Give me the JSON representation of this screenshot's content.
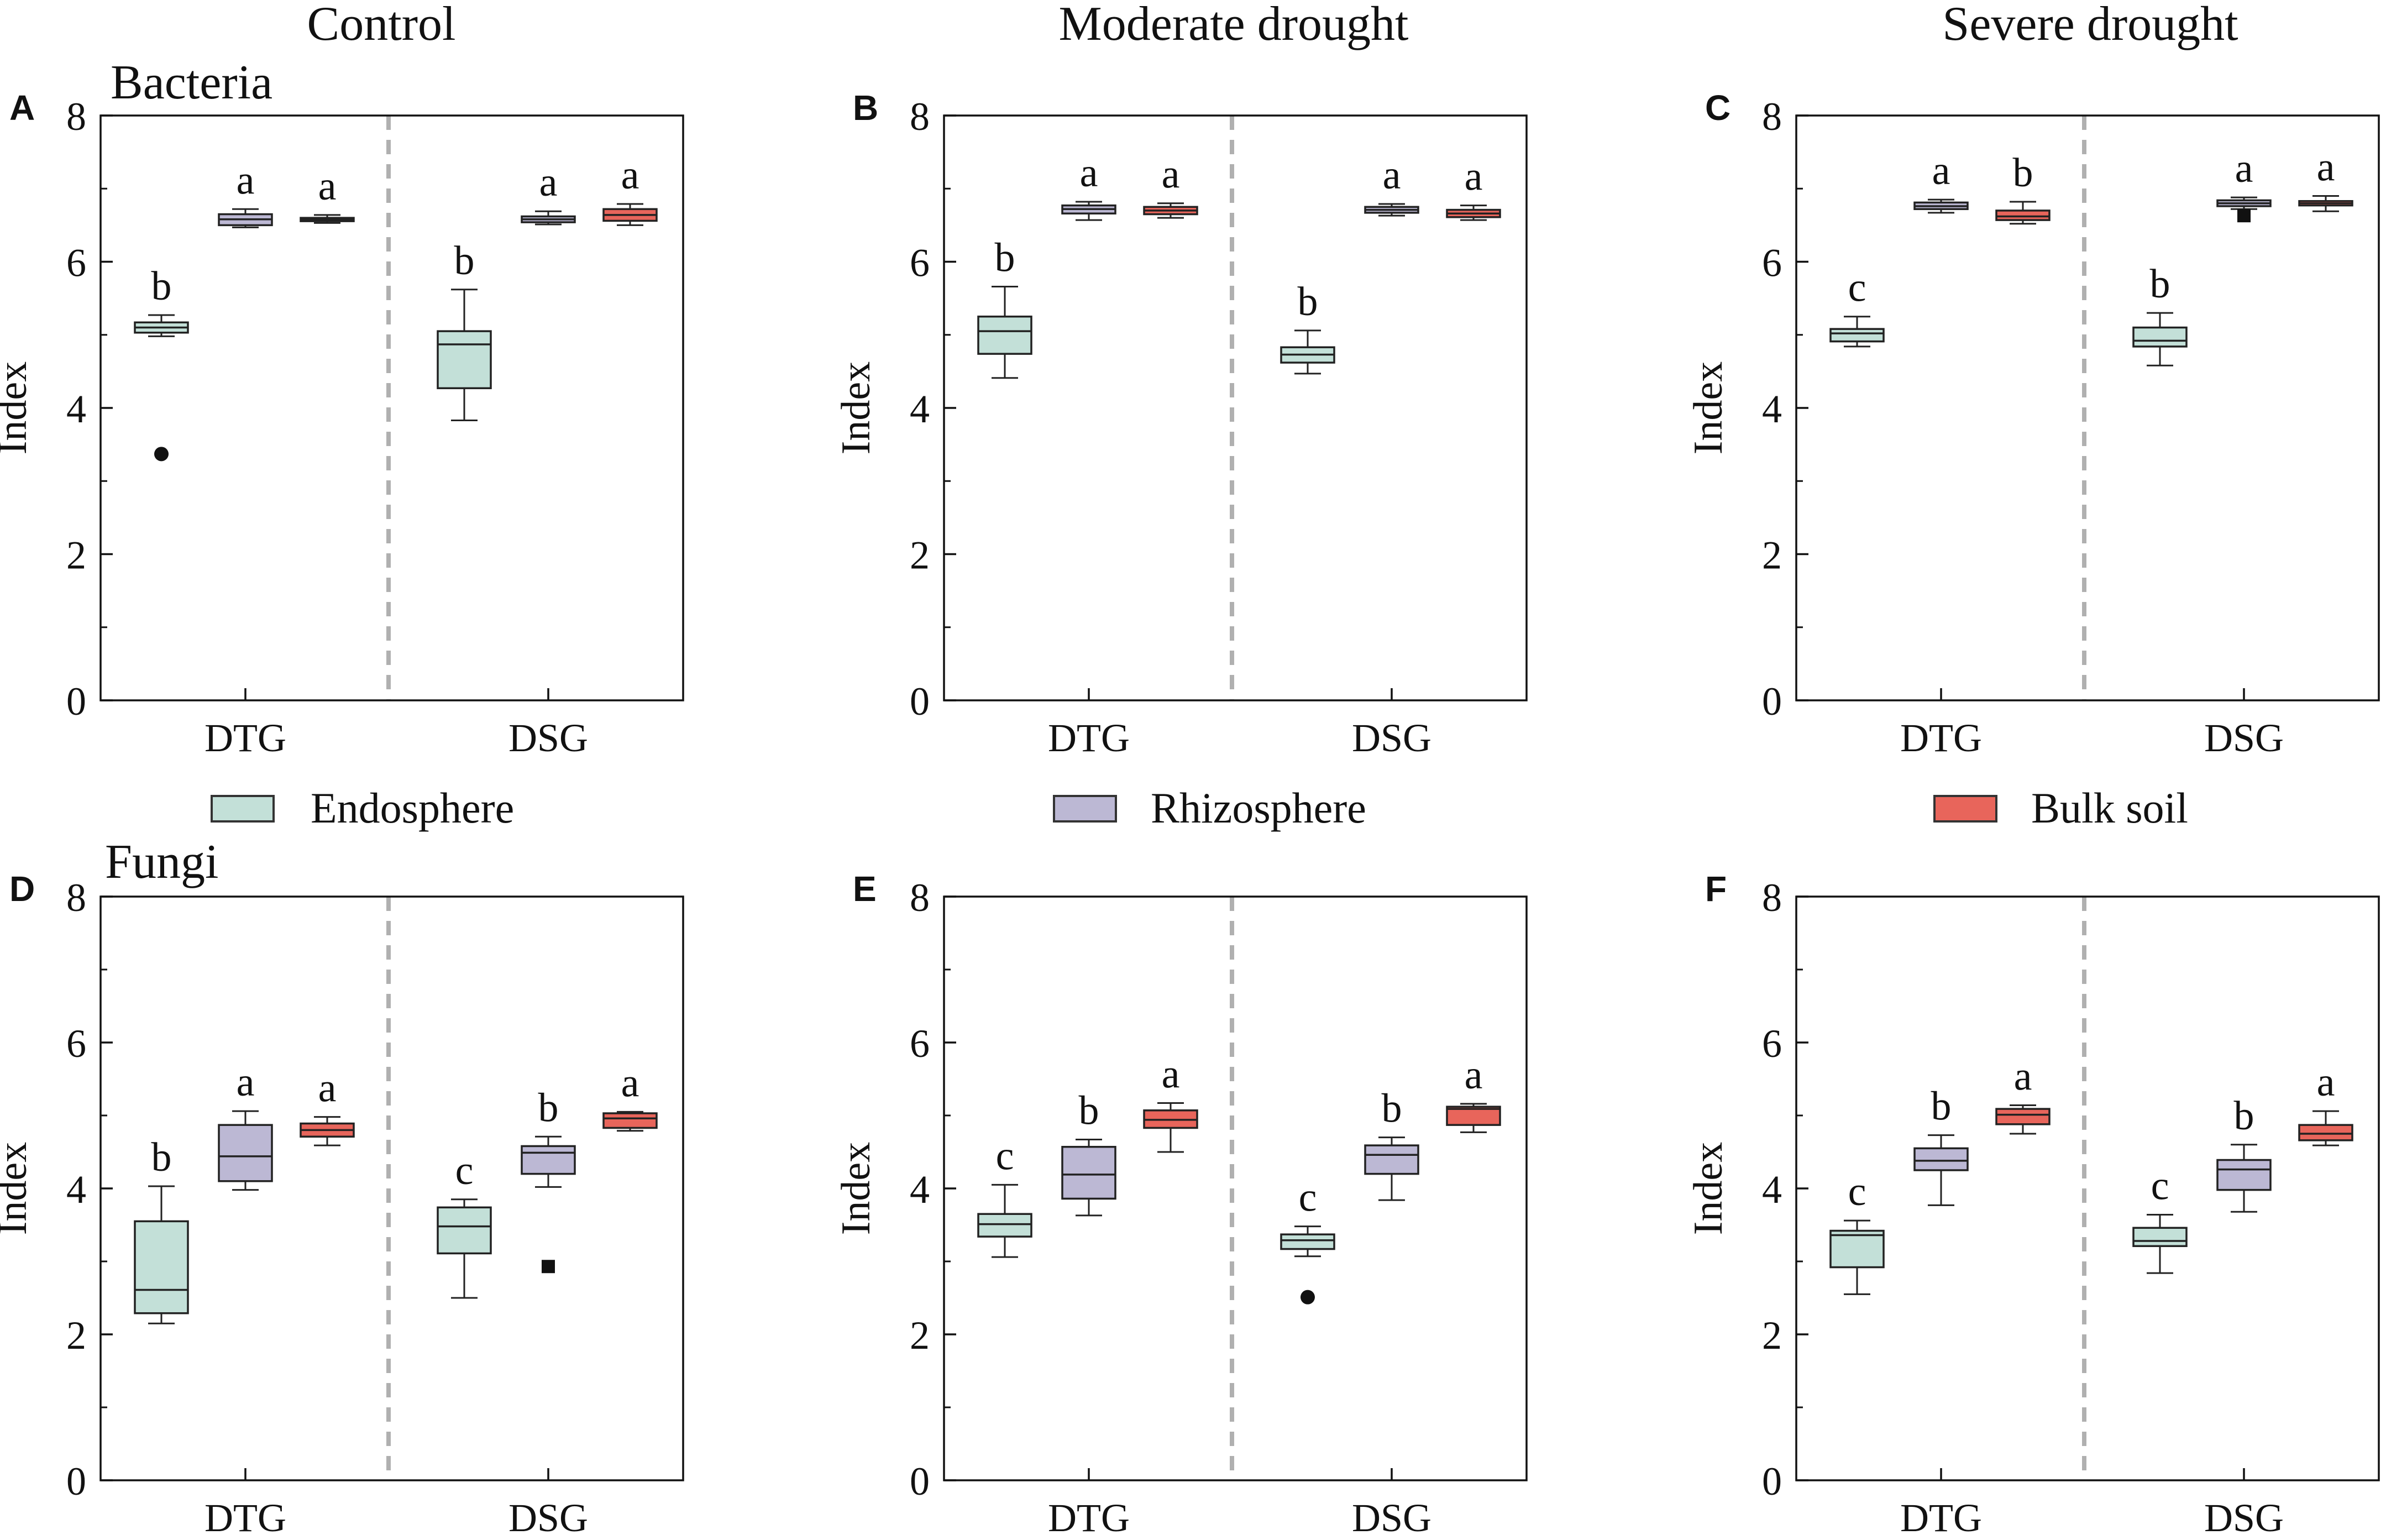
{
  "column_headers": [
    "Control",
    "Moderate drought",
    "Severe drought"
  ],
  "row_labels": [
    "Bacteria",
    "Fungi"
  ],
  "legend": [
    {
      "label": "Endosphere",
      "color": "#c3e0d8"
    },
    {
      "label": "Rhizosphere",
      "color": "#bcb8d4"
    },
    {
      "label": "Bulk soil",
      "color": "#e8655b"
    }
  ],
  "colors": {
    "endosphere": "#c3e0d8",
    "rhizosphere": "#bcb8d4",
    "bulk_soil": "#e8655b",
    "divider": "#b0b0b0",
    "axis": "#111111"
  },
  "chart_data": [
    {
      "panel": "A",
      "type": "box",
      "ylabel": "Index",
      "ylim": [
        0,
        8
      ],
      "yticks": [
        "0",
        "2",
        "4",
        "6",
        "8"
      ],
      "categories": [
        "DTG",
        "DSG"
      ],
      "series": [
        "Endosphere",
        "Rhizosphere",
        "Bulk soil"
      ],
      "groups": [
        [
          {
            "min": 4.98,
            "q1": 5.03,
            "median": 5.1,
            "q3": 5.17,
            "max": 5.27,
            "letter": "b",
            "outliers": [
              3.37
            ],
            "outlier_shape": "circle"
          },
          {
            "min": 6.47,
            "q1": 6.5,
            "median": 6.58,
            "q3": 6.65,
            "max": 6.72,
            "letter": "a",
            "outliers": []
          },
          {
            "min": 6.53,
            "q1": 6.56,
            "median": 6.58,
            "q3": 6.6,
            "max": 6.64,
            "letter": "a",
            "outliers": []
          }
        ],
        [
          {
            "min": 3.83,
            "q1": 4.27,
            "median": 4.87,
            "q3": 5.05,
            "max": 5.62,
            "letter": "b",
            "outliers": []
          },
          {
            "min": 6.51,
            "q1": 6.54,
            "median": 6.58,
            "q3": 6.62,
            "max": 6.69,
            "letter": "a",
            "outliers": []
          },
          {
            "min": 6.5,
            "q1": 6.56,
            "median": 6.64,
            "q3": 6.72,
            "max": 6.79,
            "letter": "a",
            "outliers": []
          }
        ]
      ]
    },
    {
      "panel": "B",
      "type": "box",
      "ylabel": "Index",
      "ylim": [
        0,
        8
      ],
      "yticks": [
        "0",
        "2",
        "4",
        "6",
        "8"
      ],
      "categories": [
        "DTG",
        "DSG"
      ],
      "series": [
        "Endosphere",
        "Rhizosphere",
        "Bulk soil"
      ],
      "groups": [
        [
          {
            "min": 4.41,
            "q1": 4.74,
            "median": 5.05,
            "q3": 5.25,
            "max": 5.66,
            "letter": "b",
            "outliers": []
          },
          {
            "min": 6.57,
            "q1": 6.66,
            "median": 6.72,
            "q3": 6.77,
            "max": 6.82,
            "letter": "a",
            "outliers": []
          },
          {
            "min": 6.6,
            "q1": 6.65,
            "median": 6.7,
            "q3": 6.75,
            "max": 6.8,
            "letter": "a",
            "outliers": []
          }
        ],
        [
          {
            "min": 4.47,
            "q1": 4.62,
            "median": 4.73,
            "q3": 4.83,
            "max": 5.06,
            "letter": "b",
            "outliers": []
          },
          {
            "min": 6.63,
            "q1": 6.67,
            "median": 6.71,
            "q3": 6.75,
            "max": 6.79,
            "letter": "a",
            "outliers": []
          },
          {
            "min": 6.57,
            "q1": 6.61,
            "median": 6.66,
            "q3": 6.71,
            "max": 6.77,
            "letter": "a",
            "outliers": []
          }
        ]
      ]
    },
    {
      "panel": "C",
      "type": "box",
      "ylabel": "Index",
      "ylim": [
        0,
        8
      ],
      "yticks": [
        "0",
        "2",
        "4",
        "6",
        "8"
      ],
      "categories": [
        "DTG",
        "DSG"
      ],
      "series": [
        "Endosphere",
        "Rhizosphere",
        "Bulk soil"
      ],
      "groups": [
        [
          {
            "min": 4.84,
            "q1": 4.91,
            "median": 5.02,
            "q3": 5.08,
            "max": 5.25,
            "letter": "c",
            "outliers": []
          },
          {
            "min": 6.67,
            "q1": 6.72,
            "median": 6.76,
            "q3": 6.81,
            "max": 6.85,
            "letter": "a",
            "outliers": []
          },
          {
            "min": 6.52,
            "q1": 6.57,
            "median": 6.62,
            "q3": 6.7,
            "max": 6.82,
            "letter": "b",
            "outliers": []
          }
        ],
        [
          {
            "min": 4.58,
            "q1": 4.84,
            "median": 4.92,
            "q3": 5.1,
            "max": 5.3,
            "letter": "b",
            "outliers": []
          },
          {
            "min": 6.72,
            "q1": 6.76,
            "median": 6.8,
            "q3": 6.84,
            "max": 6.88,
            "letter": "a",
            "outliers": [
              6.63
            ],
            "outlier_shape": "square"
          },
          {
            "min": 6.69,
            "q1": 6.77,
            "median": 6.8,
            "q3": 6.83,
            "max": 6.9,
            "letter": "a",
            "outliers": []
          }
        ]
      ]
    },
    {
      "panel": "D",
      "type": "box",
      "ylabel": "Index",
      "ylim": [
        0,
        8
      ],
      "yticks": [
        "0",
        "2",
        "4",
        "6",
        "8"
      ],
      "categories": [
        "DTG",
        "DSG"
      ],
      "series": [
        "Endosphere",
        "Rhizosphere",
        "Bulk soil"
      ],
      "groups": [
        [
          {
            "min": 2.15,
            "q1": 2.29,
            "median": 2.61,
            "q3": 3.55,
            "max": 4.03,
            "letter": "b",
            "outliers": []
          },
          {
            "min": 3.98,
            "q1": 4.1,
            "median": 4.44,
            "q3": 4.87,
            "max": 5.06,
            "letter": "a",
            "outliers": []
          },
          {
            "min": 4.59,
            "q1": 4.71,
            "median": 4.8,
            "q3": 4.89,
            "max": 4.98,
            "letter": "a",
            "outliers": []
          }
        ],
        [
          {
            "min": 2.5,
            "q1": 3.11,
            "median": 3.48,
            "q3": 3.74,
            "max": 3.85,
            "letter": "c",
            "outliers": []
          },
          {
            "min": 4.02,
            "q1": 4.2,
            "median": 4.49,
            "q3": 4.58,
            "max": 4.71,
            "letter": "b",
            "outliers": [
              2.93
            ],
            "outlier_shape": "square"
          },
          {
            "min": 4.79,
            "q1": 4.83,
            "median": 4.96,
            "q3": 5.03,
            "max": 5.05,
            "letter": "a",
            "outliers": []
          }
        ]
      ]
    },
    {
      "panel": "E",
      "type": "box",
      "ylabel": "Index",
      "ylim": [
        0,
        8
      ],
      "yticks": [
        "0",
        "2",
        "4",
        "6",
        "8"
      ],
      "categories": [
        "DTG",
        "DSG"
      ],
      "series": [
        "Endosphere",
        "Rhizosphere",
        "Bulk soil"
      ],
      "groups": [
        [
          {
            "min": 3.06,
            "q1": 3.34,
            "median": 3.51,
            "q3": 3.65,
            "max": 4.05,
            "letter": "c",
            "outliers": []
          },
          {
            "min": 3.63,
            "q1": 3.86,
            "median": 4.19,
            "q3": 4.57,
            "max": 4.67,
            "letter": "b",
            "outliers": []
          },
          {
            "min": 4.5,
            "q1": 4.83,
            "median": 4.94,
            "q3": 5.07,
            "max": 5.17,
            "letter": "a",
            "outliers": []
          }
        ],
        [
          {
            "min": 3.07,
            "q1": 3.17,
            "median": 3.29,
            "q3": 3.37,
            "max": 3.48,
            "letter": "c",
            "outliers": [
              2.51
            ],
            "outlier_shape": "circle"
          },
          {
            "min": 3.84,
            "q1": 4.2,
            "median": 4.46,
            "q3": 4.59,
            "max": 4.7,
            "letter": "b",
            "outliers": []
          },
          {
            "min": 4.77,
            "q1": 4.87,
            "median": 5.09,
            "q3": 5.12,
            "max": 5.16,
            "letter": "a",
            "outliers": []
          }
        ]
      ]
    },
    {
      "panel": "F",
      "type": "box",
      "ylabel": "Index",
      "ylim": [
        0,
        8
      ],
      "yticks": [
        "0",
        "2",
        "4",
        "6",
        "8"
      ],
      "categories": [
        "DTG",
        "DSG"
      ],
      "series": [
        "Endosphere",
        "Rhizosphere",
        "Bulk soil"
      ],
      "groups": [
        [
          {
            "min": 2.55,
            "q1": 2.92,
            "median": 3.36,
            "q3": 3.42,
            "max": 3.56,
            "letter": "c",
            "outliers": []
          },
          {
            "min": 3.77,
            "q1": 4.25,
            "median": 4.38,
            "q3": 4.55,
            "max": 4.73,
            "letter": "b",
            "outliers": []
          },
          {
            "min": 4.75,
            "q1": 4.88,
            "median": 5.01,
            "q3": 5.09,
            "max": 5.14,
            "letter": "a",
            "outliers": []
          }
        ],
        [
          {
            "min": 2.84,
            "q1": 3.21,
            "median": 3.28,
            "q3": 3.46,
            "max": 3.64,
            "letter": "c",
            "outliers": []
          },
          {
            "min": 3.68,
            "q1": 3.98,
            "median": 4.26,
            "q3": 4.39,
            "max": 4.6,
            "letter": "b",
            "outliers": []
          },
          {
            "min": 4.59,
            "q1": 4.66,
            "median": 4.75,
            "q3": 4.87,
            "max": 5.06,
            "letter": "a",
            "outliers": []
          }
        ]
      ]
    }
  ]
}
